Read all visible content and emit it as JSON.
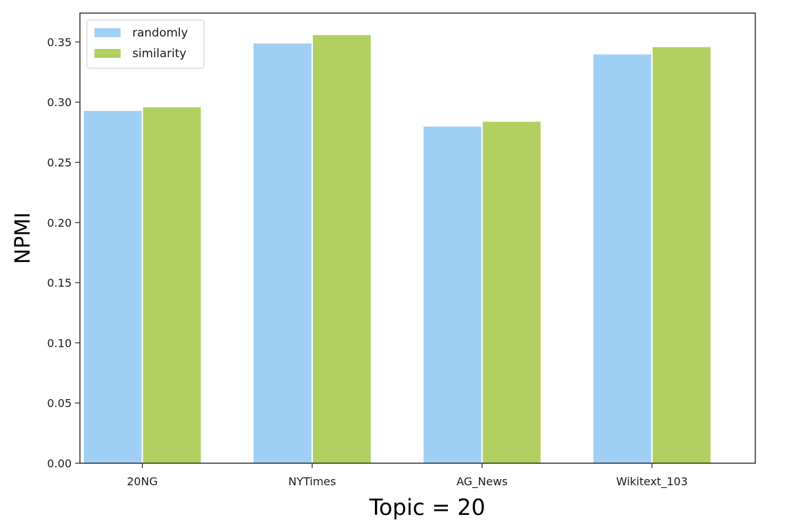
{
  "chart_data": {
    "type": "bar",
    "xlabel": "Topic = 20",
    "ylabel": "NPMI",
    "categories": [
      "20NG",
      "NYTimes",
      "AG_News",
      "Wikitext_103"
    ],
    "series": [
      {
        "name": "randomly",
        "color": "#a1d0f5",
        "values": [
          0.293,
          0.349,
          0.28,
          0.34
        ]
      },
      {
        "name": "similarity",
        "color": "#b1d061",
        "values": [
          0.296,
          0.356,
          0.284,
          0.346
        ]
      }
    ],
    "ylim": [
      0,
      0.374
    ],
    "yticks": [
      0.0,
      0.05,
      0.1,
      0.15,
      0.2,
      0.25,
      0.3,
      0.35
    ],
    "ytick_labels": [
      "0.00",
      "0.05",
      "0.10",
      "0.15",
      "0.20",
      "0.25",
      "0.30",
      "0.35"
    ],
    "grid": false,
    "legend_position": "top-left"
  }
}
